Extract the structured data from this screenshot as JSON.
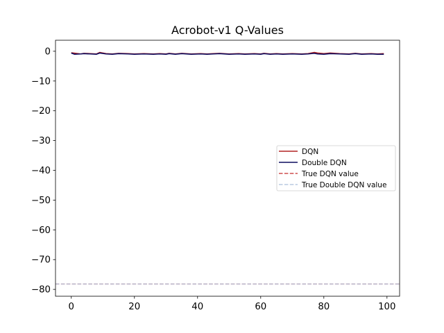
{
  "chart_data": {
    "type": "line",
    "title": "Acrobot-v1 Q-Values",
    "xlabel": "",
    "ylabel": "",
    "xlim": [
      -5,
      104
    ],
    "ylim": [
      -82.3,
      3.7
    ],
    "xticks": [
      0,
      20,
      40,
      60,
      80,
      100
    ],
    "yticks": [
      0,
      -10,
      -20,
      -30,
      -40,
      -50,
      -60,
      -70,
      -80
    ],
    "xtick_labels": [
      "0",
      "20",
      "40",
      "60",
      "80",
      "100"
    ],
    "ytick_labels": [
      "0",
      "−10",
      "−20",
      "−30",
      "−40",
      "−50",
      "−60",
      "−70",
      "−80"
    ],
    "grid": false,
    "legend_position": "center-right",
    "series": [
      {
        "name": "DQN",
        "style": "solid",
        "color": "#b22222",
        "x": [
          0,
          3,
          4,
          6,
          8,
          9,
          11,
          13,
          15,
          18,
          20,
          23,
          26,
          28,
          30,
          31,
          33,
          35,
          38,
          41,
          43,
          45,
          47,
          50,
          53,
          55,
          58,
          60,
          61,
          63,
          65,
          67,
          70,
          73,
          75,
          77,
          78,
          80,
          82,
          85,
          88,
          90,
          92,
          95,
          97,
          99
        ],
        "values": [
          -0.5,
          -0.9,
          -0.7,
          -0.8,
          -0.9,
          -0.4,
          -0.8,
          -0.9,
          -0.7,
          -0.8,
          -0.9,
          -0.8,
          -0.9,
          -0.8,
          -0.9,
          -0.7,
          -0.9,
          -0.7,
          -0.9,
          -0.8,
          -0.9,
          -0.8,
          -0.7,
          -0.9,
          -0.8,
          -0.9,
          -0.8,
          -0.9,
          -0.7,
          -0.9,
          -0.8,
          -0.9,
          -0.8,
          -0.9,
          -0.8,
          -0.4,
          -0.6,
          -0.8,
          -0.6,
          -0.8,
          -0.9,
          -0.7,
          -0.9,
          -0.8,
          -0.9,
          -0.8
        ]
      },
      {
        "name": "Double DQN",
        "style": "solid",
        "color": "#0b0b5e",
        "x": [
          0,
          1,
          3,
          4,
          6,
          8,
          9,
          11,
          13,
          15,
          18,
          20,
          23,
          26,
          28,
          30,
          31,
          33,
          35,
          38,
          41,
          43,
          45,
          47,
          50,
          53,
          55,
          58,
          60,
          61,
          63,
          65,
          67,
          70,
          73,
          75,
          77,
          78,
          80,
          82,
          85,
          88,
          90,
          92,
          95,
          97,
          99
        ],
        "values": [
          -0.6,
          -1.0,
          -0.9,
          -0.8,
          -0.9,
          -1.0,
          -0.6,
          -0.9,
          -1.0,
          -0.8,
          -0.9,
          -1.0,
          -0.9,
          -1.0,
          -0.9,
          -1.0,
          -0.8,
          -1.0,
          -0.8,
          -1.0,
          -0.9,
          -1.0,
          -0.9,
          -0.8,
          -1.0,
          -0.9,
          -1.0,
          -0.9,
          -1.0,
          -0.8,
          -1.0,
          -0.9,
          -1.0,
          -0.9,
          -1.0,
          -0.9,
          -0.7,
          -0.9,
          -1.0,
          -0.8,
          -0.9,
          -1.0,
          -0.8,
          -1.0,
          -0.9,
          -1.0,
          -1.0
        ]
      },
      {
        "name": "True DQN value",
        "style": "dashed",
        "color": "#cd4f4f",
        "hline": -78.2
      },
      {
        "name": "True Double DQN value",
        "style": "dashed",
        "color": "#b8c8e0",
        "hline": -78.2
      }
    ]
  }
}
